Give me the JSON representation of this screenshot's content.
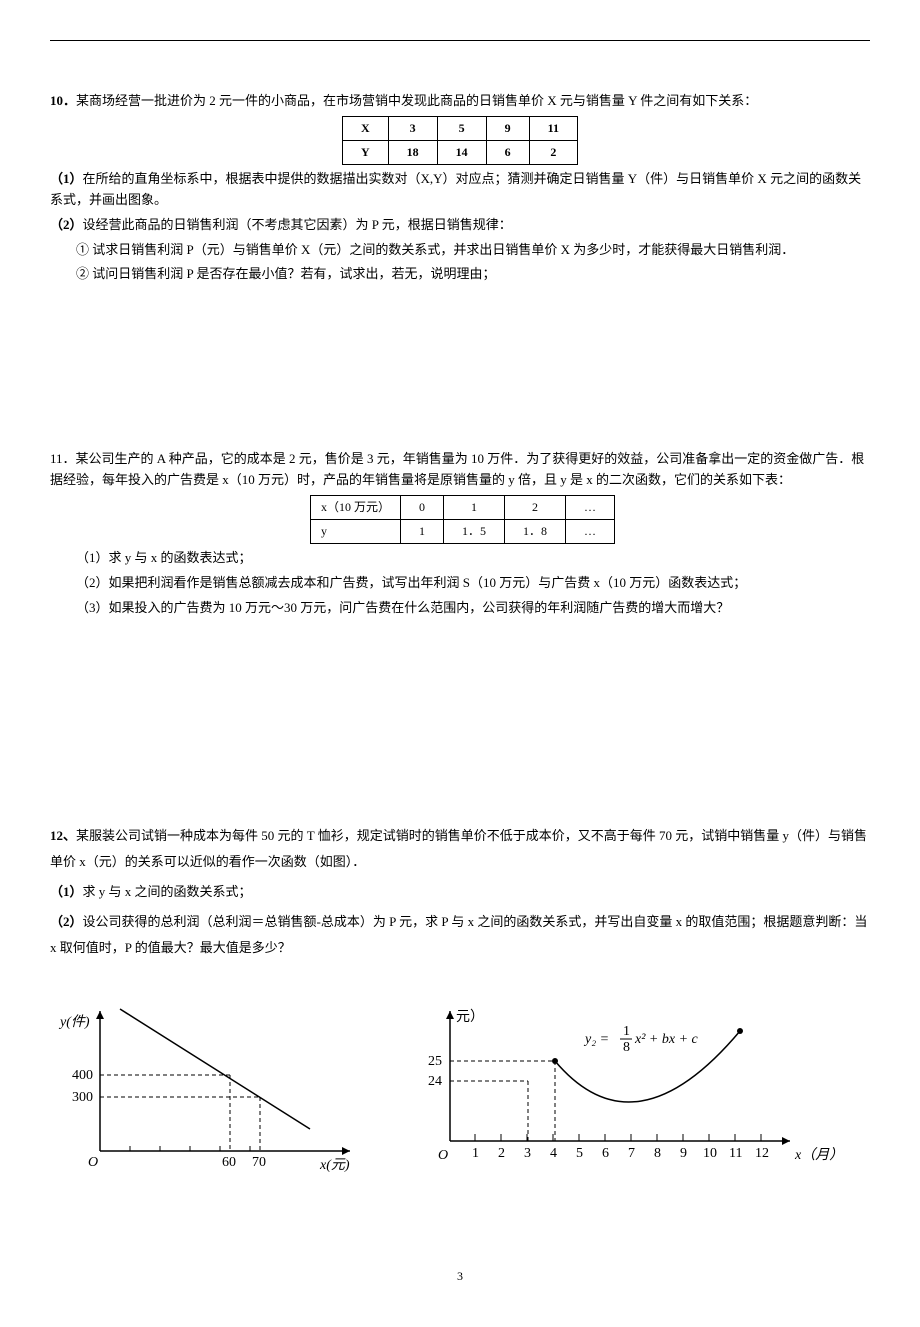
{
  "problem10": {
    "number": "10．",
    "intro": "某商场经营一批进价为 2 元一件的小商品，在市场营销中发现此商品的日销售单价 X 元与销售量 Y 件之间有如下关系：",
    "table": {
      "headers": [
        "X",
        "3",
        "5",
        "9",
        "11"
      ],
      "row": [
        "Y",
        "18",
        "14",
        "6",
        "2"
      ]
    },
    "part1_label": "（1）",
    "part1_text": "在所给的直角坐标系中，根据表中提供的数据描出实数对（X,Y）对应点；猜测并确定日销售量 Y（件）与日销售单价 X 元之间的函数关系式，并画出图象。",
    "part2_label": "（2）",
    "part2_text": "设经营此商品的日销售利润（不考虑其它因素）为 P 元，根据日销售规律：",
    "part2_sub1": "① 试求日销售利润 P（元）与销售单价 X（元）之间的数关系式，并求出日销售单价 X 为多少时，才能获得最大日销售利润．",
    "part2_sub2": "② 试问日销售利润 P 是否存在最小值？若有，试求出，若无，说明理由；"
  },
  "problem11": {
    "number": "11．",
    "intro": "某公司生产的 A 种产品，它的成本是 2 元，售价是 3 元，年销售量为 10 万件．为了获得更好的效益，公司准备拿出一定的资金做广告．根据经验，每年投入的广告费是 x（10 万元）时，产品的年销售量将是原销售量的 y 倍，且 y 是 x 的二次函数，它们的关系如下表：",
    "table": {
      "row1": [
        "x（10 万元）",
        "0",
        "1",
        "2",
        "…"
      ],
      "row2": [
        "y",
        "1",
        "1．5",
        "1．8",
        "…"
      ]
    },
    "part1": "（1）求 y 与 x 的函数表达式；",
    "part2": "（2）如果把利润看作是销售总额减去成本和广告费，试写出年利润 S（10 万元）与广告费 x（10 万元）函数表达式；",
    "part3": "（3）如果投入的广告费为 10 万元～30 万元，问广告费在什么范围内，公司获得的年利润随广告费的增大而增大？"
  },
  "problem12": {
    "number": "12、",
    "intro": "某服装公司试销一种成本为每件 50 元的 T 恤衫，规定试销时的销售单价不低于成本价，又不高于每件 70 元，试销中销售量 y（件）与销售单价 x（元）的关系可以近似的看作一次函数（如图）．",
    "part1_label": "（1）",
    "part1_text": "求 y 与 x 之间的函数关系式；",
    "part2_label": "（2）",
    "part2_text": "设公司获得的总利润（总利润＝总销售额-总成本）为 P 元，求 P 与 x 之间的函数关系式，并写出自变量 x 的取值范围；根据题意判断：当 x 取何值时，P 的值最大？最大值是多少？"
  },
  "chart1": {
    "y_axis_label": "y(件)",
    "x_axis_label": "x(元)",
    "y_ticks": [
      "300",
      "400"
    ],
    "x_ticks": [
      "60",
      "70"
    ],
    "origin": "O",
    "line_color": "#000000",
    "axis_color": "#000000",
    "grid_style": "dashed"
  },
  "chart2": {
    "y_axis_label": "元）",
    "x_axis_label": "x（月）",
    "y_ticks": [
      "24",
      "25"
    ],
    "x_ticks": [
      "1",
      "2",
      "3",
      "4",
      "5",
      "6",
      "7",
      "8",
      "9",
      "10",
      "11",
      "12"
    ],
    "origin": "O",
    "formula_prefix": "y₂ = ",
    "formula_frac_num": "1",
    "formula_frac_den": "8",
    "formula_suffix": "x² + bx + c",
    "curve_color": "#000000",
    "point_radius": 3
  },
  "page_number": "3"
}
